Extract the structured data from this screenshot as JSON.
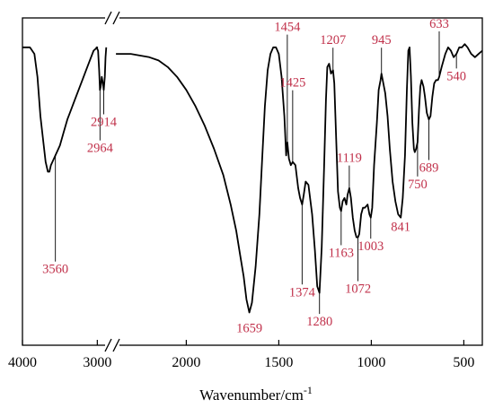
{
  "chart_data": {
    "type": "line",
    "xlabel": "Wavenumber/cm",
    "xlabel_superscript": "-1",
    "ylabel": "",
    "axis_break": true,
    "x_reversed": true,
    "segments": [
      {
        "xlim": [
          4000,
          2800
        ],
        "ticks": [
          {
            "value": 4000,
            "label": "4000"
          },
          {
            "value": 3000,
            "label": "3000"
          }
        ]
      },
      {
        "xlim": [
          2400,
          400
        ],
        "ticks": [
          {
            "value": 2000,
            "label": "2000"
          },
          {
            "value": 1500,
            "label": "1500"
          },
          {
            "value": 1000,
            "label": "1000"
          },
          {
            "value": 500,
            "label": "500"
          }
        ]
      }
    ],
    "ylim": [
      0,
      100
    ],
    "grid": false,
    "legend": "none",
    "annotation_color": "#c0304a",
    "line_color": "#000000",
    "series": [
      {
        "segment1": [
          [
            4000,
            91
          ],
          [
            3900,
            91
          ],
          [
            3840,
            89
          ],
          [
            3800,
            82
          ],
          [
            3760,
            70
          ],
          [
            3720,
            62
          ],
          [
            3690,
            56
          ],
          [
            3660,
            53
          ],
          [
            3640,
            53
          ],
          [
            3620,
            55
          ],
          [
            3560,
            58
          ],
          [
            3500,
            61
          ],
          [
            3450,
            65
          ],
          [
            3400,
            69
          ],
          [
            3350,
            72
          ],
          [
            3300,
            75
          ],
          [
            3250,
            78
          ],
          [
            3200,
            81
          ],
          [
            3150,
            84
          ],
          [
            3100,
            87
          ],
          [
            3050,
            90
          ],
          [
            3000,
            91
          ],
          [
            3010,
            91
          ],
          [
            2990,
            90
          ],
          [
            2975,
            84
          ],
          [
            2964,
            78
          ],
          [
            2955,
            79
          ],
          [
            2940,
            82
          ],
          [
            2925,
            80
          ],
          [
            2914,
            78
          ],
          [
            2900,
            82
          ],
          [
            2890,
            88
          ],
          [
            2880,
            91
          ]
        ],
        "segment2": [
          [
            2380,
            89
          ],
          [
            2300,
            89
          ],
          [
            2200,
            88
          ],
          [
            2150,
            87
          ],
          [
            2100,
            85
          ],
          [
            2050,
            82
          ],
          [
            2000,
            78
          ],
          [
            1950,
            73
          ],
          [
            1900,
            67
          ],
          [
            1850,
            60
          ],
          [
            1800,
            52
          ],
          [
            1760,
            43
          ],
          [
            1730,
            35
          ],
          [
            1710,
            28
          ],
          [
            1690,
            21
          ],
          [
            1675,
            14
          ],
          [
            1659,
            10
          ],
          [
            1645,
            13
          ],
          [
            1625,
            24
          ],
          [
            1605,
            40
          ],
          [
            1590,
            57
          ],
          [
            1575,
            73
          ],
          [
            1560,
            84
          ],
          [
            1545,
            89
          ],
          [
            1530,
            91
          ],
          [
            1515,
            91
          ],
          [
            1500,
            89
          ],
          [
            1485,
            82
          ],
          [
            1470,
            70
          ],
          [
            1460,
            58
          ],
          [
            1454,
            62
          ],
          [
            1445,
            57
          ],
          [
            1435,
            55
          ],
          [
            1425,
            56
          ],
          [
            1410,
            55
          ],
          [
            1395,
            48
          ],
          [
            1385,
            45
          ],
          [
            1374,
            43
          ],
          [
            1365,
            46
          ],
          [
            1355,
            50
          ],
          [
            1340,
            49
          ],
          [
            1320,
            40
          ],
          [
            1305,
            29
          ],
          [
            1292,
            18
          ],
          [
            1280,
            16
          ],
          [
            1268,
            30
          ],
          [
            1255,
            55
          ],
          [
            1245,
            75
          ],
          [
            1238,
            85
          ],
          [
            1228,
            86
          ],
          [
            1218,
            83
          ],
          [
            1207,
            84
          ],
          [
            1200,
            80
          ],
          [
            1190,
            63
          ],
          [
            1180,
            47
          ],
          [
            1170,
            42
          ],
          [
            1163,
            41
          ],
          [
            1155,
            44
          ],
          [
            1145,
            45
          ],
          [
            1135,
            43
          ],
          [
            1128,
            46
          ],
          [
            1119,
            48
          ],
          [
            1110,
            45
          ],
          [
            1100,
            39
          ],
          [
            1090,
            35
          ],
          [
            1080,
            33
          ],
          [
            1072,
            33
          ],
          [
            1065,
            34
          ],
          [
            1055,
            40
          ],
          [
            1045,
            42
          ],
          [
            1035,
            42
          ],
          [
            1020,
            43
          ],
          [
            1010,
            40
          ],
          [
            1003,
            39
          ],
          [
            995,
            42
          ],
          [
            985,
            55
          ],
          [
            970,
            68
          ],
          [
            960,
            78
          ],
          [
            950,
            81
          ],
          [
            945,
            83
          ],
          [
            935,
            80
          ],
          [
            925,
            77
          ],
          [
            912,
            70
          ],
          [
            900,
            60
          ],
          [
            885,
            50
          ],
          [
            870,
            44
          ],
          [
            855,
            40
          ],
          [
            841,
            39
          ],
          [
            830,
            45
          ],
          [
            818,
            58
          ],
          [
            808,
            78
          ],
          [
            800,
            90
          ],
          [
            793,
            91
          ],
          [
            786,
            82
          ],
          [
            778,
            68
          ],
          [
            770,
            60
          ],
          [
            765,
            59
          ],
          [
            758,
            60
          ],
          [
            750,
            62
          ],
          [
            742,
            72
          ],
          [
            735,
            79
          ],
          [
            728,
            81
          ],
          [
            718,
            79
          ],
          [
            710,
            76
          ],
          [
            700,
            71
          ],
          [
            689,
            69
          ],
          [
            680,
            70
          ],
          [
            670,
            76
          ],
          [
            660,
            80
          ],
          [
            650,
            81
          ],
          [
            640,
            81
          ],
          [
            633,
            82
          ],
          [
            620,
            85
          ],
          [
            600,
            89
          ],
          [
            585,
            91
          ],
          [
            570,
            90
          ],
          [
            555,
            88
          ],
          [
            540,
            89
          ],
          [
            525,
            91
          ],
          [
            510,
            91
          ],
          [
            495,
            92
          ],
          [
            480,
            91
          ],
          [
            460,
            89
          ],
          [
            440,
            88
          ],
          [
            420,
            89
          ],
          [
            400,
            90
          ]
        ]
      }
    ],
    "annotations": [
      {
        "label": "3560",
        "x": 3560,
        "seg": 1,
        "anchor_y": 58,
        "label_y": 22
      },
      {
        "label": "2964",
        "x": 2964,
        "seg": 1,
        "anchor_y": 78,
        "label_y": 59
      },
      {
        "label": "2914",
        "x": 2914,
        "seg": 1,
        "anchor_y": 78,
        "label_y": 67
      },
      {
        "label": "1659",
        "x": 1659,
        "seg": 2,
        "anchor_y": null,
        "label_y": 4
      },
      {
        "label": "1454",
        "x": 1454,
        "seg": 2,
        "anchor_y": 62,
        "label_y": 96
      },
      {
        "label": "1425",
        "x": 1425,
        "seg": 2,
        "anchor_y": 56,
        "label_y": 79
      },
      {
        "label": "1374",
        "x": 1374,
        "seg": 2,
        "anchor_y": 43,
        "label_y": 15
      },
      {
        "label": "1280",
        "x": 1280,
        "seg": 2,
        "anchor_y": 16,
        "label_y": 6
      },
      {
        "label": "1207",
        "x": 1207,
        "seg": 2,
        "anchor_y": 84,
        "label_y": 92
      },
      {
        "label": "1163",
        "x": 1163,
        "seg": 2,
        "anchor_y": 41,
        "label_y": 27
      },
      {
        "label": "1119",
        "x": 1119,
        "seg": 2,
        "anchor_y": 48,
        "label_y": 56
      },
      {
        "label": "1072",
        "x": 1072,
        "seg": 2,
        "anchor_y": 33,
        "label_y": 16
      },
      {
        "label": "1003",
        "x": 1003,
        "seg": 2,
        "anchor_y": 39,
        "label_y": 29
      },
      {
        "label": "945",
        "x": 945,
        "seg": 2,
        "anchor_y": 83,
        "label_y": 92
      },
      {
        "label": "841",
        "x": 841,
        "seg": 2,
        "anchor_y": null,
        "label_y": 35
      },
      {
        "label": "750",
        "x": 750,
        "seg": 2,
        "anchor_y": 62,
        "label_y": 48
      },
      {
        "label": "689",
        "x": 689,
        "seg": 2,
        "anchor_y": 69,
        "label_y": 53
      },
      {
        "label": "633",
        "x": 633,
        "seg": 2,
        "anchor_y": 82,
        "label_y": 97
      },
      {
        "label": "540",
        "x": 540,
        "seg": 2,
        "anchor_y": 89,
        "label_y": 81
      }
    ]
  }
}
